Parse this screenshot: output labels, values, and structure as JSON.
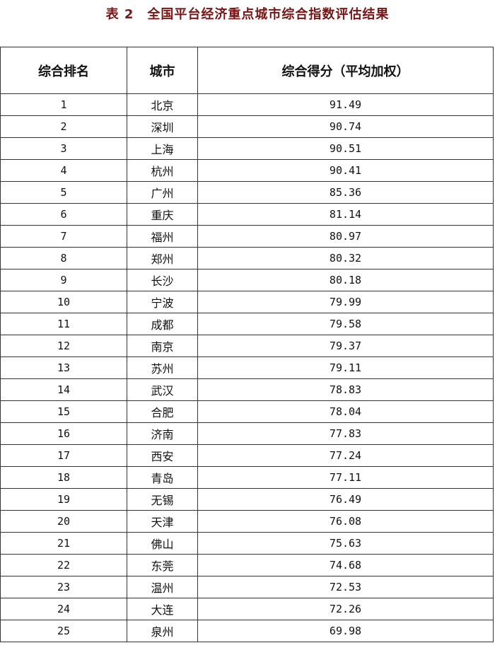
{
  "title": "表 2　全国平台经济重点城市综合指数评估结果",
  "headers": [
    "综合排名",
    "城市",
    "综合得分（平均加权）"
  ],
  "rows": [
    [
      "1",
      "北京",
      "91.49"
    ],
    [
      "2",
      "深圳",
      "90.74"
    ],
    [
      "3",
      "上海",
      "90.51"
    ],
    [
      "4",
      "杭州",
      "90.41"
    ],
    [
      "5",
      "广州",
      "85.36"
    ],
    [
      "6",
      "重庆",
      "81.14"
    ],
    [
      "7",
      "福州",
      "80.97"
    ],
    [
      "8",
      "郑州",
      "80.32"
    ],
    [
      "9",
      "长沙",
      "80.18"
    ],
    [
      "10",
      "宁波",
      "79.99"
    ],
    [
      "11",
      "成都",
      "79.58"
    ],
    [
      "12",
      "南京",
      "79.37"
    ],
    [
      "13",
      "苏州",
      "79.11"
    ],
    [
      "14",
      "武汉",
      "78.83"
    ],
    [
      "15",
      "合肥",
      "78.04"
    ],
    [
      "16",
      "济南",
      "77.83"
    ],
    [
      "17",
      "西安",
      "77.24"
    ],
    [
      "18",
      "青岛",
      "77.11"
    ],
    [
      "19",
      "无锡",
      "76.49"
    ],
    [
      "20",
      "天津",
      "76.08"
    ],
    [
      "21",
      "佛山",
      "75.63"
    ],
    [
      "22",
      "东莞",
      "74.68"
    ],
    [
      "23",
      "温州",
      "72.53"
    ],
    [
      "24",
      "大连",
      "72.26"
    ],
    [
      "25",
      "泉州",
      "69.98"
    ]
  ],
  "colors": {
    "title": "#7a1515",
    "border": "#333333"
  }
}
